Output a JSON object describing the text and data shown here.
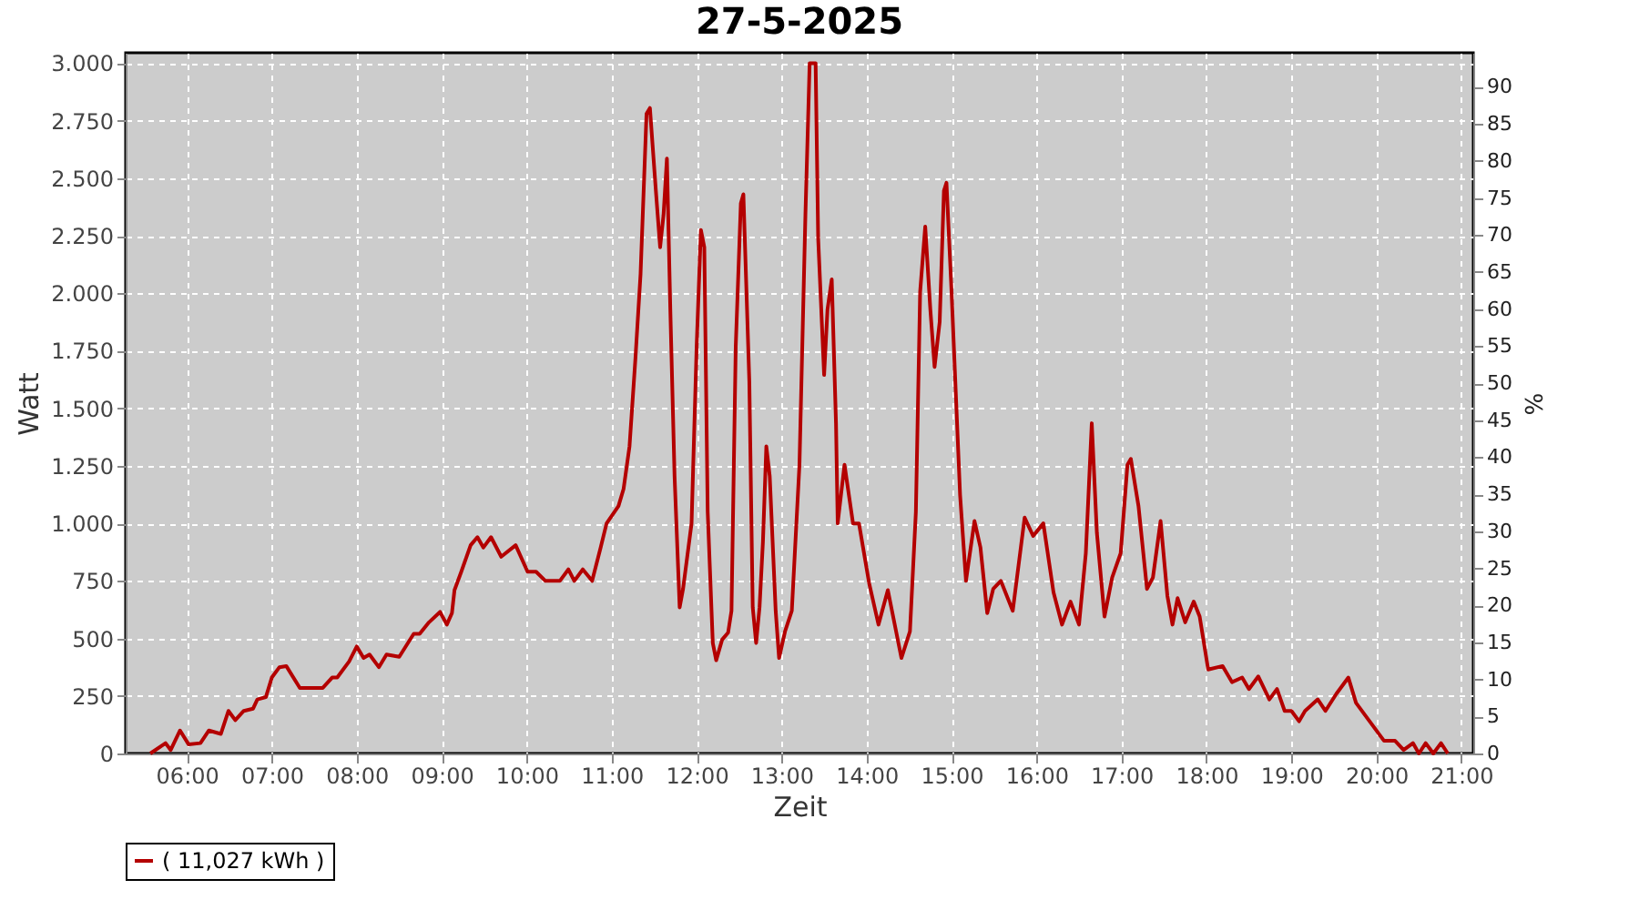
{
  "chart_data": {
    "type": "line",
    "title": "27-5-2025",
    "xlabel": "Zeit",
    "ylabel": "Watt",
    "y2label": "%",
    "xlim": [
      5.28,
      21.14
    ],
    "ylim": [
      0,
      3045
    ],
    "y2lim": [
      0,
      94.6
    ],
    "xticks": [
      {
        "value": 6,
        "label": "06:00"
      },
      {
        "value": 7,
        "label": "07:00"
      },
      {
        "value": 8,
        "label": "08:00"
      },
      {
        "value": 9,
        "label": "09:00"
      },
      {
        "value": 10,
        "label": "10:00"
      },
      {
        "value": 11,
        "label": "11:00"
      },
      {
        "value": 12,
        "label": "12:00"
      },
      {
        "value": 13,
        "label": "13:00"
      },
      {
        "value": 14,
        "label": "14:00"
      },
      {
        "value": 15,
        "label": "15:00"
      },
      {
        "value": 16,
        "label": "16:00"
      },
      {
        "value": 17,
        "label": "17:00"
      },
      {
        "value": 18,
        "label": "18:00"
      },
      {
        "value": 19,
        "label": "19:00"
      },
      {
        "value": 20,
        "label": "20:00"
      },
      {
        "value": 21,
        "label": "21:00"
      }
    ],
    "yticks": [
      0,
      250,
      500,
      750,
      {
        "value": 1000,
        "label": "1.000"
      },
      {
        "value": 1250,
        "label": "1.250"
      },
      {
        "value": 1500,
        "label": "1.500"
      },
      {
        "value": 1750,
        "label": "1.750"
      },
      {
        "value": 2000,
        "label": "2.000"
      },
      {
        "value": 2250,
        "label": "2.250"
      },
      {
        "value": 2500,
        "label": "2.500"
      },
      {
        "value": 2750,
        "label": "2.750"
      },
      {
        "value": 3000,
        "label": "3.000"
      }
    ],
    "y2ticks": [
      0,
      5,
      10,
      15,
      20,
      25,
      30,
      35,
      40,
      45,
      50,
      55,
      60,
      65,
      70,
      75,
      80,
      85,
      90
    ],
    "grid": true,
    "legend": "bottom",
    "marker": "none",
    "line_style": "solid",
    "series": [
      {
        "name": "( 11,027 kWh )",
        "color": "#b40000",
        "x": [
          5.57,
          5.75,
          5.81,
          5.92,
          6.02,
          6.16,
          6.26,
          6.4,
          6.49,
          6.57,
          6.67,
          6.78,
          6.83,
          6.93,
          7.0,
          7.09,
          7.17,
          7.33,
          7.46,
          7.6,
          7.71,
          7.77,
          7.91,
          8.0,
          8.08,
          8.15,
          8.26,
          8.35,
          8.5,
          8.67,
          8.74,
          8.85,
          8.98,
          9.06,
          9.12,
          9.15,
          9.23,
          9.34,
          9.42,
          9.49,
          9.58,
          9.7,
          9.87,
          10.01,
          10.11,
          10.22,
          10.39,
          10.49,
          10.56,
          10.66,
          10.77,
          10.87,
          10.94,
          11.08,
          11.14,
          11.21,
          11.28,
          11.34,
          11.41,
          11.45,
          11.52,
          11.57,
          11.61,
          11.65,
          11.69,
          11.74,
          11.8,
          11.84,
          11.94,
          12.0,
          12.05,
          12.09,
          12.13,
          12.19,
          12.23,
          12.3,
          12.37,
          12.41,
          12.46,
          12.52,
          12.55,
          12.62,
          12.66,
          12.7,
          12.74,
          12.78,
          12.82,
          12.86,
          12.93,
          12.97,
          13.04,
          13.12,
          13.21,
          13.28,
          13.33,
          13.4,
          13.43,
          13.5,
          13.54,
          13.59,
          13.64,
          13.66,
          13.74,
          13.84,
          13.91,
          14.03,
          14.14,
          14.25,
          14.41,
          14.51,
          14.58,
          14.63,
          14.69,
          14.75,
          14.8,
          14.86,
          14.91,
          14.94,
          15.0,
          15.1,
          15.17,
          15.2,
          15.27,
          15.34,
          15.42,
          15.49,
          15.58,
          15.72,
          15.86,
          15.96,
          16.08,
          16.2,
          16.3,
          16.4,
          16.5,
          16.58,
          16.65,
          16.71,
          16.8,
          16.89,
          16.99,
          17.07,
          17.11,
          17.2,
          17.3,
          17.37,
          17.46,
          17.54,
          17.6,
          17.66,
          17.75,
          17.85,
          17.92,
          18.02,
          18.19,
          18.3,
          18.42,
          18.5,
          18.61,
          18.74,
          18.83,
          18.92,
          19.0,
          19.09,
          19.16,
          19.31,
          19.4,
          19.53,
          19.67,
          19.76,
          19.91,
          20.09,
          20.22,
          20.32,
          20.43,
          20.5,
          20.58,
          20.67,
          20.76,
          20.84
        ],
        "values": [
          0,
          45,
          15,
          100,
          40,
          45,
          100,
          85,
          185,
          145,
          185,
          195,
          235,
          245,
          330,
          375,
          380,
          285,
          285,
          285,
          330,
          330,
          400,
          465,
          415,
          430,
          375,
          430,
          420,
          520,
          520,
          570,
          615,
          560,
          610,
          710,
          790,
          905,
          940,
          895,
          940,
          855,
          905,
          790,
          790,
          750,
          750,
          800,
          750,
          800,
          750,
          895,
          1000,
          1075,
          1150,
          1335,
          1720,
          2085,
          2780,
          2805,
          2445,
          2200,
          2340,
          2585,
          1930,
          1205,
          635,
          715,
          1000,
          1770,
          2275,
          2200,
          1050,
          480,
          405,
          495,
          525,
          620,
          1770,
          2390,
          2430,
          1615,
          635,
          480,
          635,
          920,
          1335,
          1205,
          620,
          415,
          530,
          620,
          1255,
          2340,
          3000,
          3000,
          2240,
          1645,
          1930,
          2060,
          1435,
          1000,
          1255,
          1000,
          1000,
          740,
          560,
          710,
          415,
          530,
          1050,
          2005,
          2290,
          1930,
          1680,
          1875,
          2445,
          2480,
          2005,
          1125,
          750,
          830,
          1010,
          895,
          610,
          715,
          750,
          620,
          1025,
          945,
          1000,
          700,
          560,
          660,
          560,
          870,
          1435,
          960,
          595,
          765,
          870,
          1255,
          1280,
          1075,
          715,
          765,
          1010,
          685,
          560,
          675,
          570,
          660,
          595,
          365,
          380,
          310,
          330,
          280,
          335,
          235,
          280,
          185,
          185,
          140,
          185,
          235,
          185,
          260,
          330,
          220,
          145,
          55,
          55,
          15,
          45,
          0,
          45,
          0,
          45,
          0
        ]
      }
    ]
  }
}
